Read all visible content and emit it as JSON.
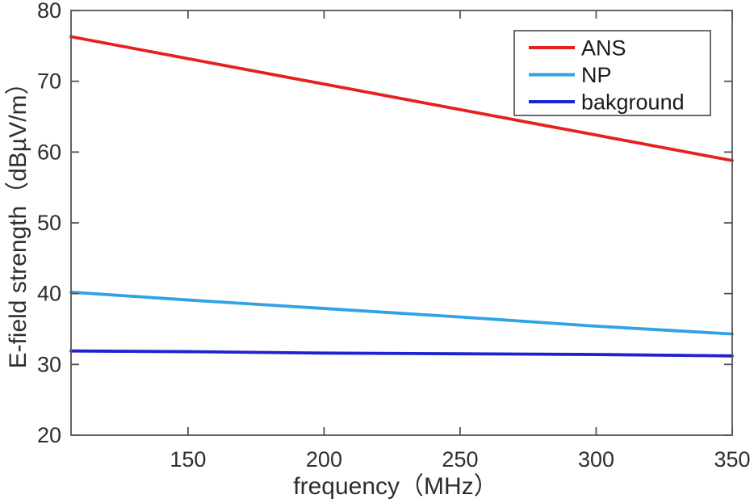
{
  "chart_data": {
    "type": "line",
    "title": "",
    "xlabel": "frequency（MHz）",
    "ylabel": "E-field strength（dBµV/m）",
    "xlim": [
      107,
      350
    ],
    "ylim": [
      20,
      80
    ],
    "x_ticks": [
      150,
      200,
      250,
      300,
      350
    ],
    "x_tick_labels": [
      "150",
      "200",
      "250",
      "300",
      "350"
    ],
    "y_ticks": [
      20,
      30,
      40,
      50,
      60,
      70,
      80
    ],
    "y_tick_labels": [
      "20",
      "30",
      "40",
      "50",
      "60",
      "70",
      "80"
    ],
    "grid": false,
    "box": true,
    "tick_direction": "in",
    "legend_position": "top-right",
    "series": [
      {
        "name": "ANS",
        "color": "#e32220",
        "x": [
          107,
          150,
          200,
          250,
          300,
          350
        ],
        "values": [
          76.3,
          73.2,
          69.6,
          66.0,
          62.4,
          58.8
        ]
      },
      {
        "name": "NP",
        "color": "#31a2e3",
        "x": [
          107,
          150,
          200,
          250,
          300,
          350
        ],
        "values": [
          40.2,
          39.1,
          37.9,
          36.7,
          35.4,
          34.3
        ]
      },
      {
        "name": "bakground",
        "color": "#1f23cf",
        "x": [
          107,
          150,
          200,
          250,
          300,
          350
        ],
        "values": [
          31.9,
          31.8,
          31.6,
          31.5,
          31.4,
          31.2
        ]
      }
    ],
    "colors": {
      "axis": "#545454",
      "text": "#2e2e2e",
      "background": "#ffffff",
      "legend_border": "#3b3b3b"
    }
  }
}
